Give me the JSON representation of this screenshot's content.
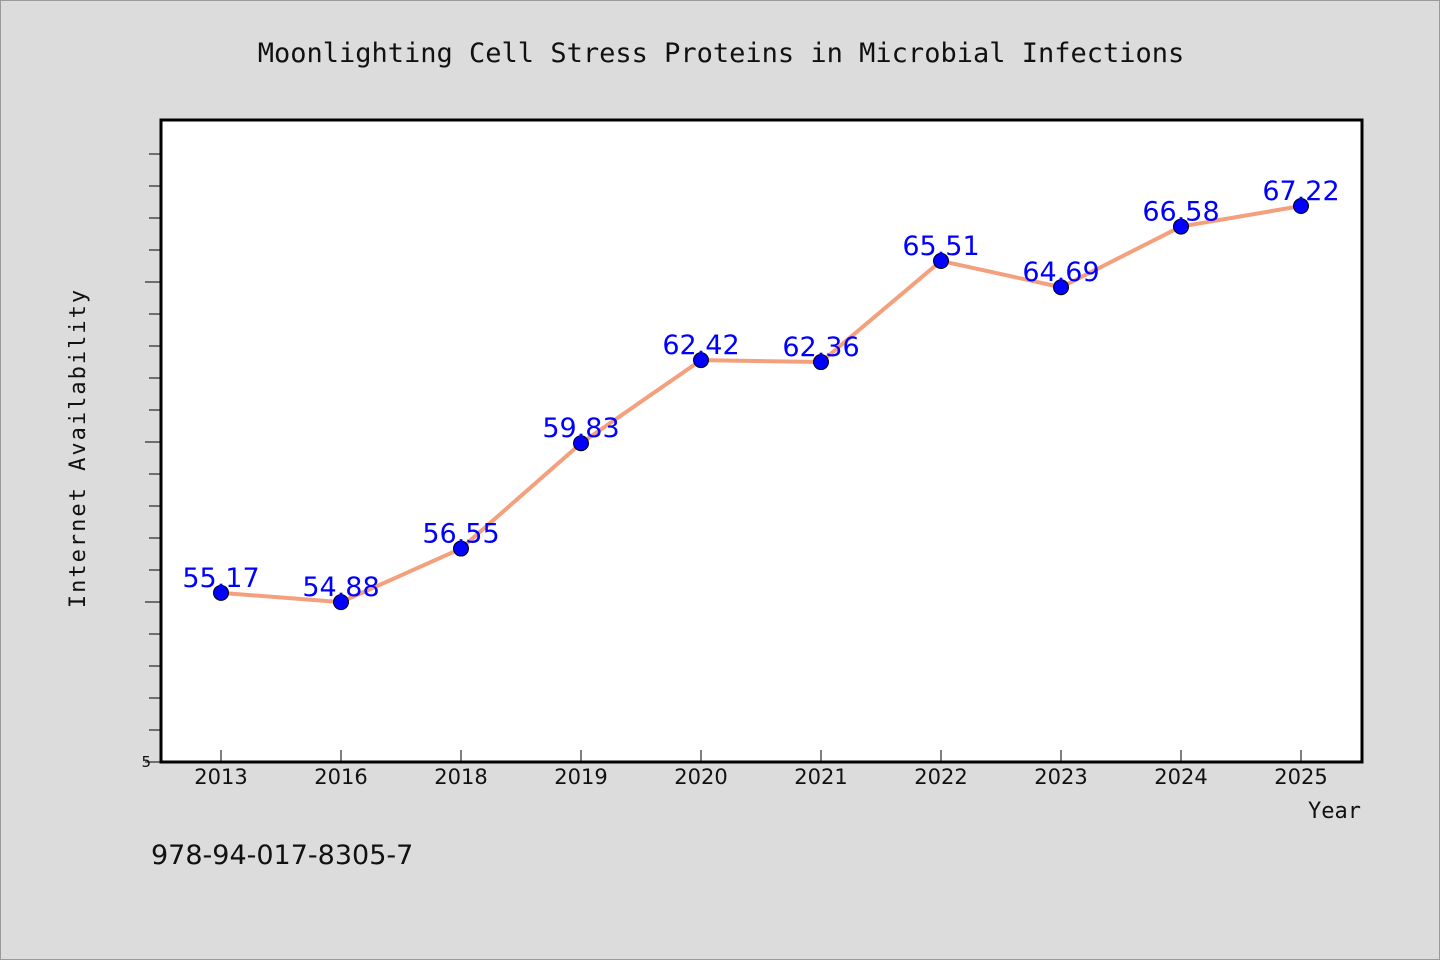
{
  "chart_data": {
    "type": "line",
    "title": "Moonlighting Cell Stress Proteins in Microbial Infections",
    "xlabel": "Year",
    "ylabel": "Internet Availability",
    "categories": [
      "2013",
      "2016",
      "2018",
      "2019",
      "2020",
      "2021",
      "2022",
      "2023",
      "2024",
      "2025"
    ],
    "series": [
      {
        "values": [
          55.17,
          54.88,
          56.55,
          59.83,
          62.42,
          62.36,
          65.51,
          64.69,
          66.58,
          67.22
        ],
        "labels": [
          "55.17",
          "54.88",
          "56.55",
          "59.83",
          "62.42",
          "62.36",
          "65.51",
          "64.69",
          "66.58",
          "67.22"
        ]
      }
    ],
    "y_tick_labels": [
      "5"
    ],
    "ylim": [
      49.9,
      69.9
    ],
    "grid": false,
    "legend": "none",
    "colors": {
      "line": "#f4a07c",
      "marker": "#0000ff",
      "label": "#0000ff",
      "plot_bg": "#ffffff",
      "page_bg": "#dcdcdc"
    }
  },
  "footer_text": "978-94-017-8305-7"
}
